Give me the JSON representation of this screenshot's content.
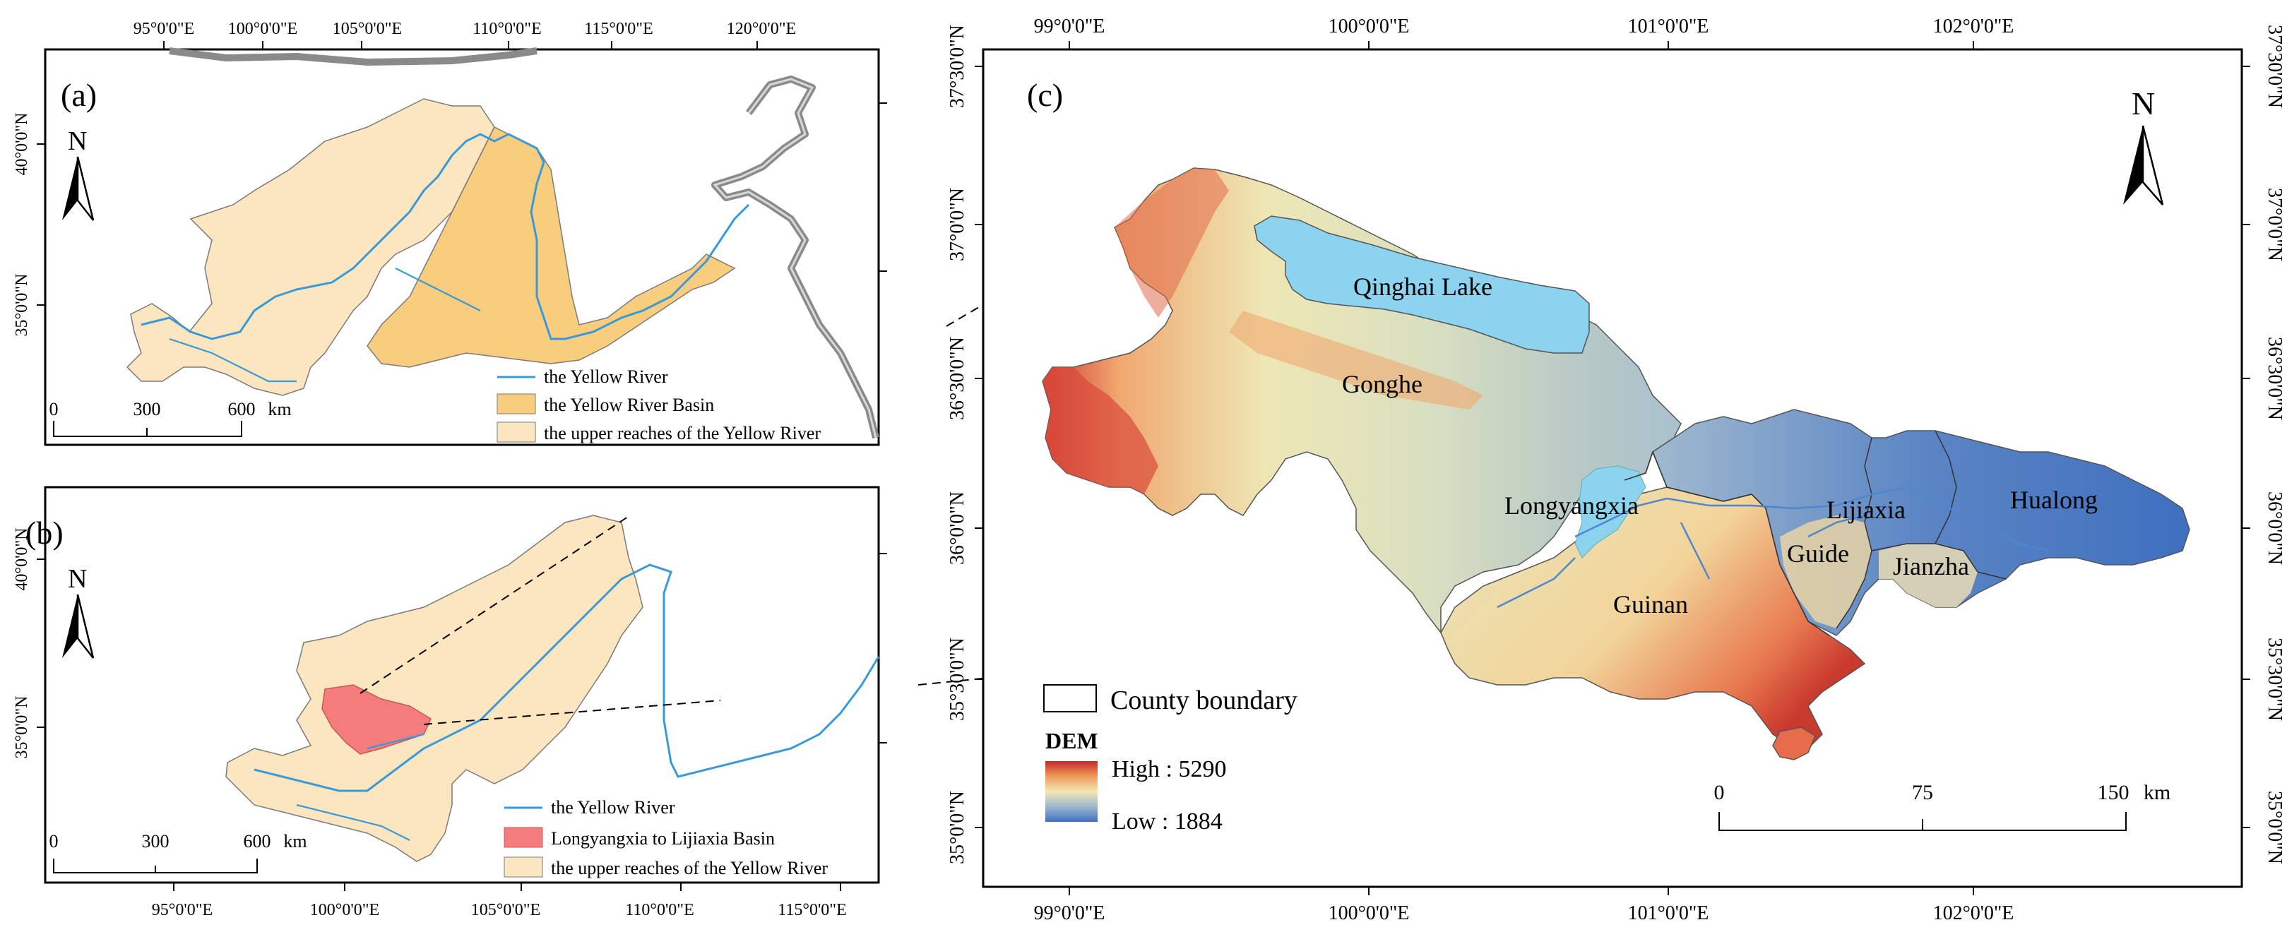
{
  "panel_a": {
    "label": "(a)",
    "top_ticks": [
      "95°0'0\"E",
      "100°0'0\"E",
      "105°0'0\"E",
      "110°0'0\"E",
      "115°0'0\"E",
      "120°0'0\"E"
    ],
    "left_ticks": [
      "40°0'0\"N",
      "35°0'0\"N"
    ],
    "north": "N",
    "scale_ticks": [
      "0",
      "300",
      "600"
    ],
    "scale_unit": "km",
    "legend": [
      "the Yellow River",
      "the Yellow River Basin",
      "the upper reaches of the Yellow River"
    ]
  },
  "panel_b": {
    "label": "(b)",
    "bottom_ticks": [
      "95°0'0\"E",
      "100°0'0\"E",
      "105°0'0\"E",
      "110°0'0\"E",
      "115°0'0\"E"
    ],
    "left_ticks": [
      "40°0'0\"N",
      "35°0'0\"N"
    ],
    "north": "N",
    "scale_ticks": [
      "0",
      "300",
      "600"
    ],
    "scale_unit": "km",
    "legend": [
      "the Yellow River",
      "Longyangxia to Lijiaxia Basin",
      "the upper reaches of the Yellow River"
    ]
  },
  "panel_c": {
    "label": "(c)",
    "top_ticks": [
      "99°0'0\"E",
      "100°0'0\"E",
      "101°0'0\"E",
      "102°0'0\"E"
    ],
    "bottom_ticks": [
      "99°0'0\"E",
      "100°0'0\"E",
      "101°0'0\"E",
      "102°0'0\"E"
    ],
    "left_ticks": [
      "37°30'0\"N",
      "37°0'0\"N",
      "36°30'0\"N",
      "36°0'0\"N",
      "35°30'0\"N",
      "35°0'0\"N"
    ],
    "right_ticks": [
      "37°30'0\"N",
      "37°0'0\"N",
      "36°30'0\"N",
      "36°0'0\"N",
      "35°30'0\"N",
      "35°0'0\"N"
    ],
    "north": "N",
    "places": {
      "qinghai_lake": "Qinghai Lake",
      "gonghe": "Gonghe",
      "longyangxia": "Longyangxia",
      "lijiaxia": "Lijiaxia",
      "hualong": "Hualong",
      "guide": "Guide",
      "jianzha": "Jianzha",
      "guinan": "Guinan"
    },
    "legend": {
      "county_boundary": "County boundary",
      "dem_title": "DEM",
      "high": "High : 5290",
      "low": "Low : 1884"
    },
    "scale_ticks": [
      "0",
      "75",
      "150"
    ],
    "scale_unit": "km"
  },
  "colors": {
    "yellow_river_basin": "#f9cd7e",
    "upper_reaches": "#fce6bf",
    "study_basin": "#f47c7c",
    "river": "#3a9ad9",
    "lake": "#8cd3ef",
    "dem_high": "#c42a2a",
    "dem_mid": "#f0e4b0",
    "dem_low": "#3f6fbf"
  }
}
